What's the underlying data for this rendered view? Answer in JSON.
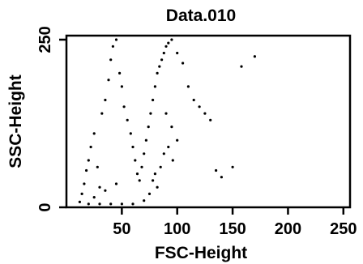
{
  "chart_data": {
    "type": "scatter",
    "title": "Data.010",
    "xlabel": "FSC-Height",
    "ylabel": "SSC-Height",
    "xlim": [
      0,
      256
    ],
    "ylim": [
      0,
      256
    ],
    "x_ticks": [
      50,
      100,
      150,
      200,
      250
    ],
    "y_ticks": [
      0,
      250
    ],
    "grid": false,
    "legend": "none",
    "colors": {
      "points": "#000000",
      "axes": "#000000",
      "background": "#ffffff"
    },
    "series": [
      {
        "values_note": "",
        "points": [
          [
            12,
            8
          ],
          [
            14,
            20
          ],
          [
            16,
            35
          ],
          [
            18,
            55
          ],
          [
            20,
            70
          ],
          [
            22,
            90
          ],
          [
            25,
            110
          ],
          [
            28,
            60
          ],
          [
            30,
            30
          ],
          [
            32,
            140
          ],
          [
            35,
            160
          ],
          [
            38,
            190
          ],
          [
            40,
            220
          ],
          [
            42,
            240
          ],
          [
            45,
            250
          ],
          [
            48,
            200
          ],
          [
            50,
            180
          ],
          [
            52,
            150
          ],
          [
            55,
            130
          ],
          [
            58,
            110
          ],
          [
            60,
            90
          ],
          [
            62,
            70
          ],
          [
            64,
            50
          ],
          [
            66,
            40
          ],
          [
            68,
            60
          ],
          [
            70,
            80
          ],
          [
            72,
            100
          ],
          [
            74,
            120
          ],
          [
            76,
            140
          ],
          [
            78,
            160
          ],
          [
            80,
            180
          ],
          [
            82,
            200
          ],
          [
            84,
            210
          ],
          [
            86,
            220
          ],
          [
            88,
            230
          ],
          [
            90,
            240
          ],
          [
            92,
            245
          ],
          [
            95,
            250
          ],
          [
            100,
            230
          ],
          [
            105,
            215
          ],
          [
            110,
            180
          ],
          [
            115,
            160
          ],
          [
            120,
            150
          ],
          [
            125,
            140
          ],
          [
            130,
            130
          ],
          [
            135,
            55
          ],
          [
            140,
            45
          ],
          [
            150,
            60
          ],
          [
            158,
            210
          ],
          [
            170,
            225
          ],
          [
            90,
            140
          ],
          [
            95,
            120
          ],
          [
            100,
            100
          ],
          [
            92,
            90
          ],
          [
            88,
            80
          ],
          [
            96,
            70
          ],
          [
            85,
            60
          ],
          [
            80,
            50
          ],
          [
            78,
            40
          ],
          [
            82,
            30
          ],
          [
            75,
            20
          ],
          [
            70,
            10
          ],
          [
            60,
            5
          ],
          [
            50,
            5
          ],
          [
            40,
            5
          ],
          [
            30,
            5
          ],
          [
            20,
            5
          ],
          [
            25,
            15
          ],
          [
            35,
            25
          ],
          [
            45,
            35
          ]
        ]
      }
    ]
  }
}
